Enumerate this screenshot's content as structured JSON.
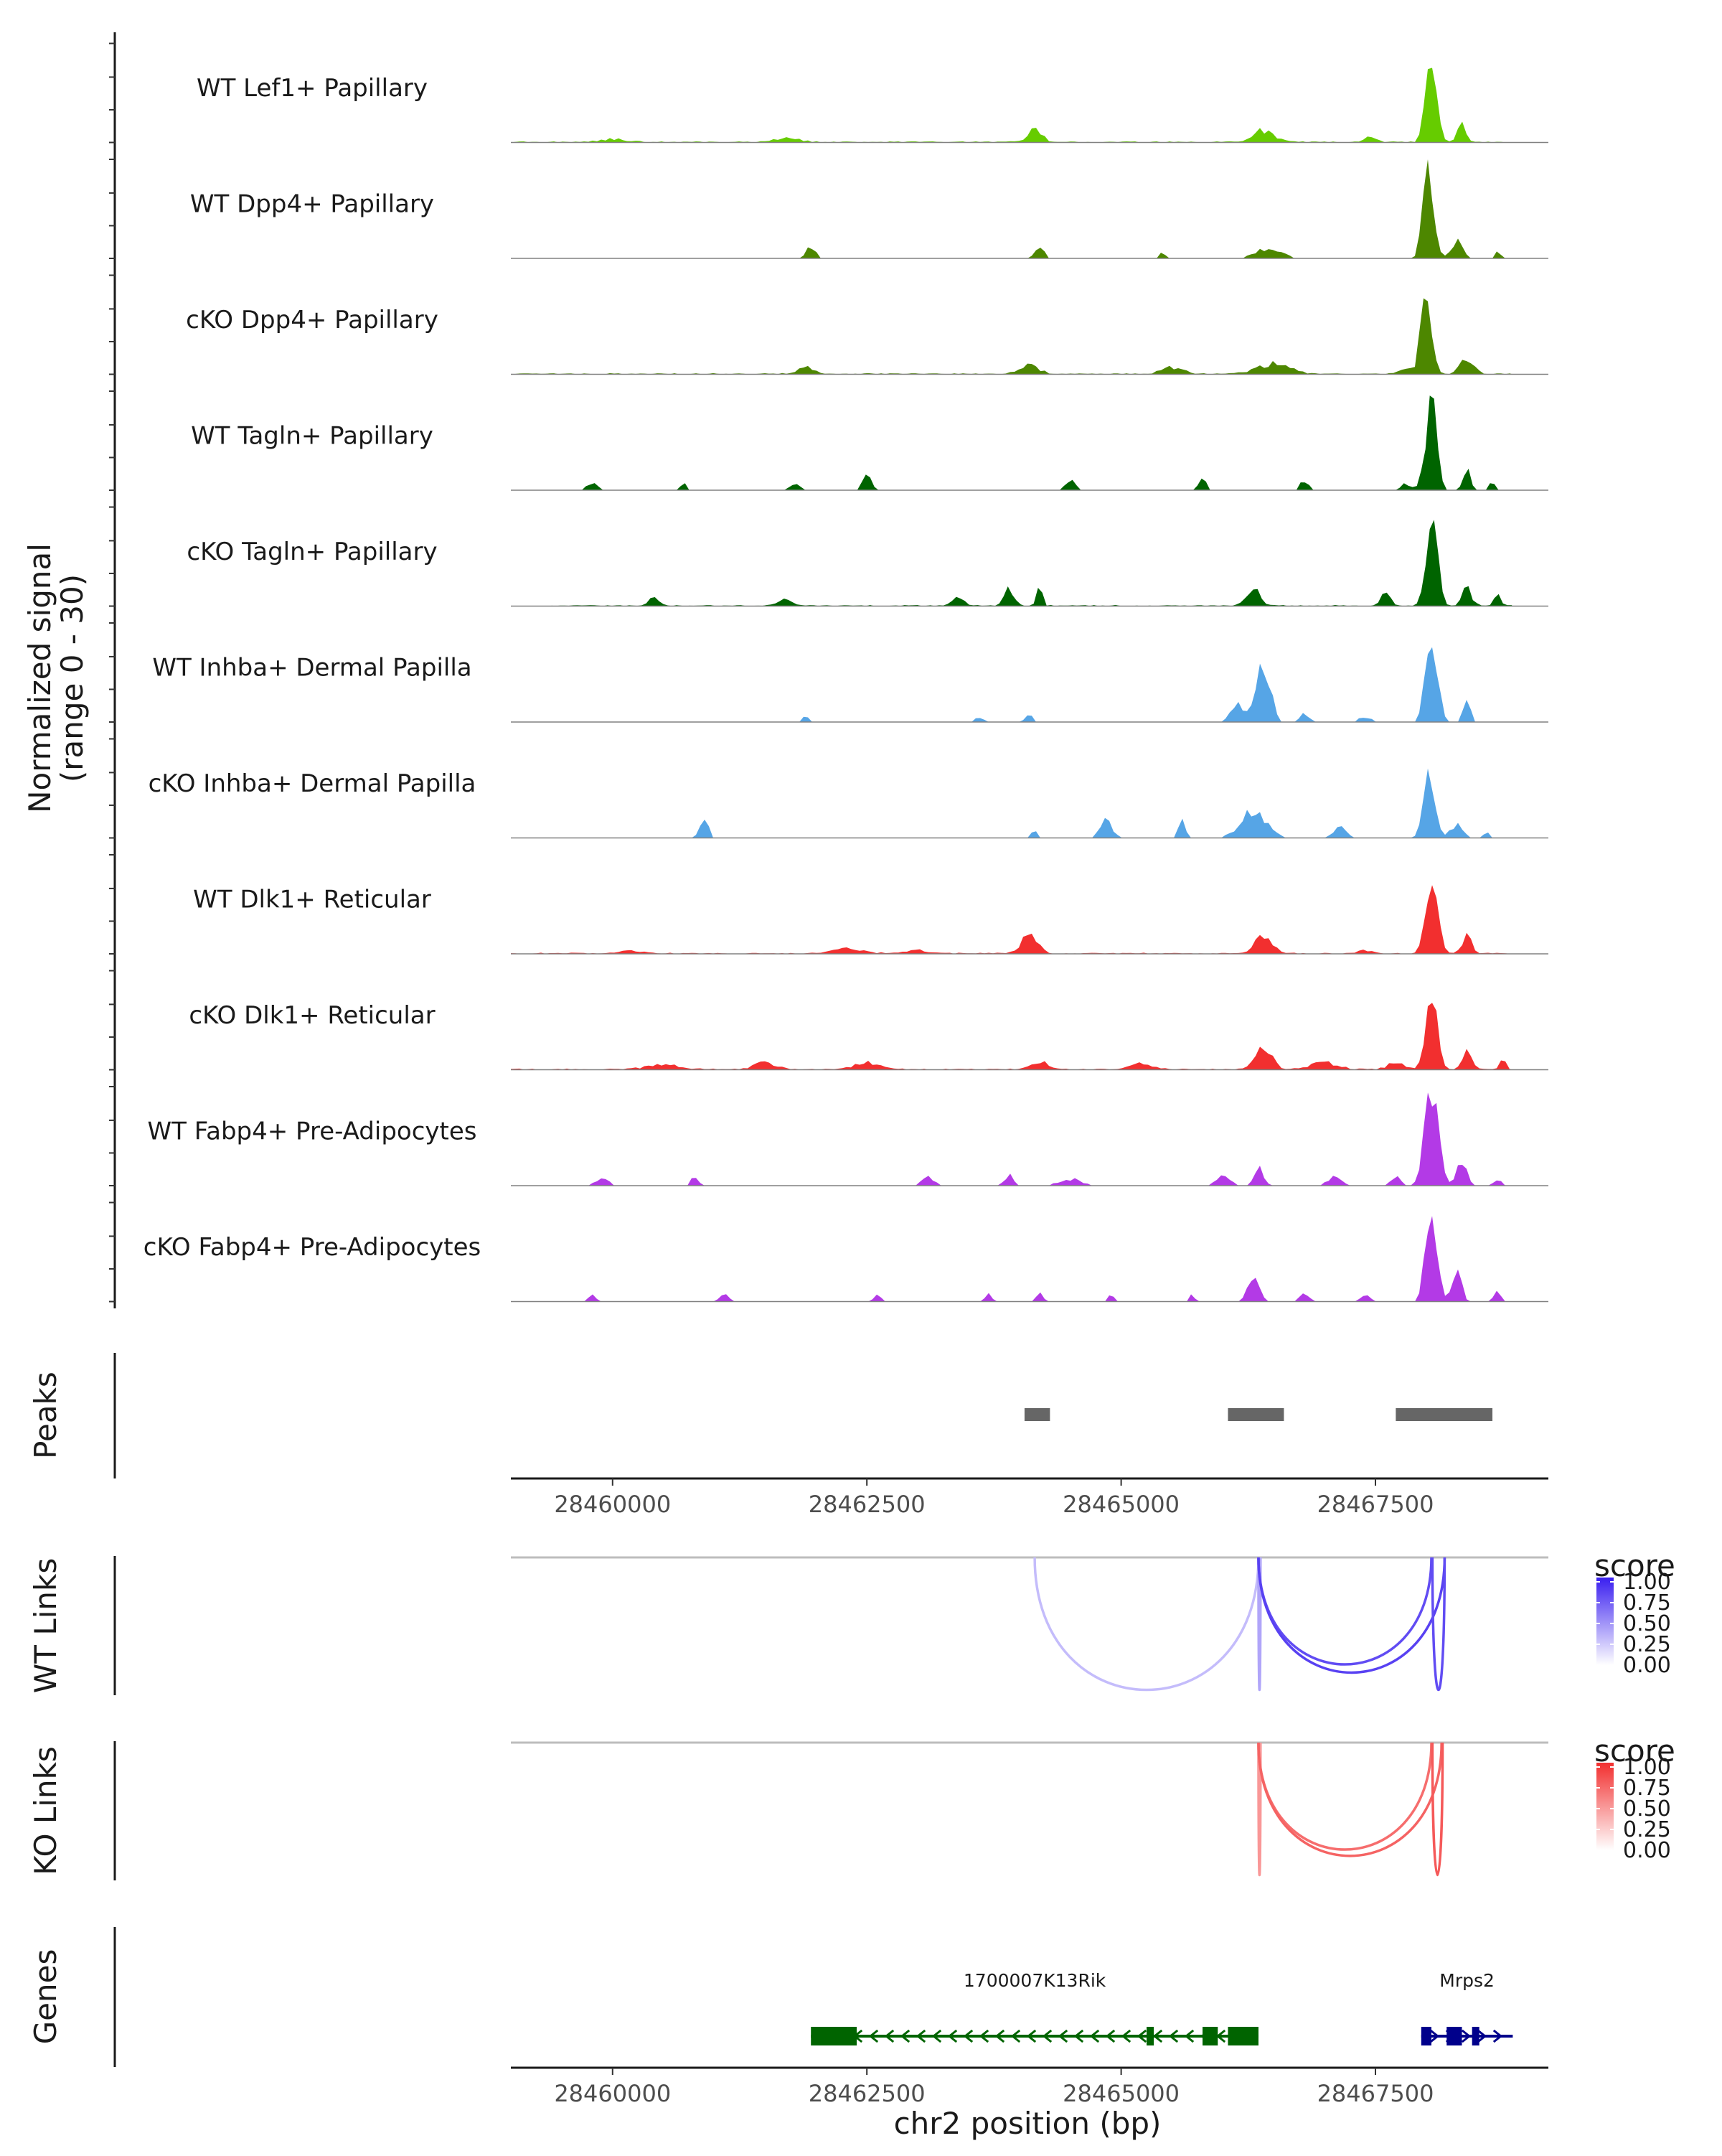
{
  "chart_data": {
    "type": "area",
    "title": "",
    "xlabel": "chr2 position (bp)",
    "ylabel": "Normalized signal",
    "ylabel_range": "(range 0 - 30)",
    "xlim": [
      28459000,
      28469200
    ],
    "ylim": [
      0,
      30
    ],
    "x_ticks": [
      28460000,
      28462500,
      28465000,
      28467500
    ],
    "x_tick_labels": [
      "28460000",
      "28462500",
      "28465000",
      "28467500"
    ],
    "coverage_tracks": [
      {
        "name": "WT Lef1+ Papillary",
        "color": "#66cc00",
        "dense": true,
        "start": 28459000,
        "end": 28468850,
        "peaks": [
          [
            28460000,
            0.8,
            280
          ],
          [
            28461700,
            1.2,
            250
          ],
          [
            28464150,
            3.5,
            140
          ],
          [
            28466400,
            3.5,
            200
          ],
          [
            28467450,
            1.8,
            120
          ],
          [
            28468050,
            30,
            100
          ],
          [
            28468350,
            5,
            80
          ]
        ]
      },
      {
        "name": "WT Dpp4+ Papillary",
        "color": "#4d8700",
        "dense": false,
        "start": 28459000,
        "end": 28468850,
        "peaks": [
          [
            28461950,
            3.5,
            90
          ],
          [
            28464200,
            3.0,
            90
          ],
          [
            28465400,
            2.0,
            60
          ],
          [
            28466450,
            3.0,
            250
          ],
          [
            28468020,
            30,
            100
          ],
          [
            28468300,
            5,
            110
          ],
          [
            28468700,
            2.5,
            60
          ]
        ]
      },
      {
        "name": "cKO Dpp4+ Papillary",
        "color": "#4d8700",
        "dense": true,
        "start": 28459000,
        "end": 28468850,
        "peaks": [
          [
            28461900,
            2.0,
            150
          ],
          [
            28464100,
            2.5,
            180
          ],
          [
            28465500,
            2.0,
            200
          ],
          [
            28466500,
            3.0,
            300
          ],
          [
            28467800,
            2.0,
            100
          ],
          [
            28468000,
            28,
            100
          ],
          [
            28468400,
            5,
            120
          ]
        ]
      },
      {
        "name": "WT Tagln+ Papillary",
        "color": "#006400",
        "dense": false,
        "start": 28459400,
        "end": 28468850,
        "peaks": [
          [
            28459800,
            2.0,
            120
          ],
          [
            28460700,
            2.0,
            60
          ],
          [
            28461800,
            2.0,
            100
          ],
          [
            28462500,
            4.5,
            90
          ],
          [
            28464500,
            3.0,
            100
          ],
          [
            28465800,
            3.5,
            70
          ],
          [
            28466800,
            3.0,
            80
          ],
          [
            28467800,
            2.0,
            90
          ],
          [
            28468050,
            28,
            110
          ],
          [
            28468400,
            7,
            70
          ],
          [
            28468650,
            2.5,
            60
          ]
        ]
      },
      {
        "name": "cKO Tagln+ Papillary",
        "color": "#006400",
        "dense": true,
        "start": 28459400,
        "end": 28468850,
        "peaks": [
          [
            28460400,
            2.0,
            100
          ],
          [
            28461700,
            2.0,
            120
          ],
          [
            28463400,
            2.5,
            100
          ],
          [
            28463900,
            5.0,
            90
          ],
          [
            28464200,
            6.0,
            50
          ],
          [
            28466300,
            6.0,
            120
          ],
          [
            28467600,
            4.0,
            90
          ],
          [
            28468050,
            27,
            110
          ],
          [
            28468400,
            5,
            90
          ],
          [
            28468700,
            3,
            60
          ]
        ]
      },
      {
        "name": "WT Inhba+ Dermal Papilla",
        "color": "#56a5e6",
        "dense": false,
        "start": 28459000,
        "end": 28468850,
        "peaks": [
          [
            28461900,
            1.5,
            80
          ],
          [
            28463600,
            1.5,
            80
          ],
          [
            28464100,
            2.0,
            80
          ],
          [
            28466400,
            18,
            130
          ],
          [
            28466150,
            5,
            150
          ],
          [
            28466800,
            2.5,
            100
          ],
          [
            28467400,
            1.5,
            150
          ],
          [
            28468050,
            28,
            110
          ],
          [
            28468400,
            8,
            70
          ]
        ]
      },
      {
        "name": "cKO Inhba+ Dermal Papilla",
        "color": "#56a5e6",
        "dense": false,
        "start": 28459000,
        "end": 28468850,
        "peaks": [
          [
            28460900,
            6.0,
            80
          ],
          [
            28464150,
            2.5,
            60
          ],
          [
            28464850,
            5.0,
            120
          ],
          [
            28465600,
            5.0,
            70
          ],
          [
            28466300,
            8.0,
            250
          ],
          [
            28467150,
            3.0,
            130
          ],
          [
            28468030,
            20,
            110
          ],
          [
            28468300,
            4,
            120
          ],
          [
            28468600,
            2,
            60
          ]
        ]
      },
      {
        "name": "WT Dlk1+ Reticular",
        "color": "#f22f2f",
        "dense": true,
        "start": 28459000,
        "end": 28468850,
        "peaks": [
          [
            28460200,
            0.8,
            200
          ],
          [
            28462300,
            1.5,
            300
          ],
          [
            28463000,
            1.0,
            200
          ],
          [
            28464100,
            6.0,
            150
          ],
          [
            28466400,
            5.5,
            160
          ],
          [
            28467400,
            1.0,
            120
          ],
          [
            28468050,
            25,
            110
          ],
          [
            28468400,
            5,
            90
          ]
        ]
      },
      {
        "name": "cKO Dlk1+ Reticular",
        "color": "#f22f2f",
        "dense": true,
        "start": 28459000,
        "end": 28468850,
        "peaks": [
          [
            28460500,
            1.5,
            300
          ],
          [
            28461500,
            2.0,
            200
          ],
          [
            28462500,
            2.0,
            250
          ],
          [
            28464200,
            2.5,
            150
          ],
          [
            28465200,
            2.0,
            200
          ],
          [
            28466400,
            7.0,
            150
          ],
          [
            28467000,
            2.0,
            250
          ],
          [
            28467700,
            2.0,
            150
          ],
          [
            28468050,
            24,
            110
          ],
          [
            28468400,
            7,
            80
          ],
          [
            28468750,
            4,
            50
          ]
        ]
      },
      {
        "name": "WT Fabp4+ Pre-Adipocytes",
        "color": "#b33ae6",
        "dense": false,
        "start": 28459000,
        "end": 28468850,
        "peaks": [
          [
            28459900,
            2.0,
            130
          ],
          [
            28460800,
            2.5,
            80
          ],
          [
            28463100,
            2.5,
            120
          ],
          [
            28463900,
            3.0,
            100
          ],
          [
            28464500,
            2.0,
            220
          ],
          [
            28466000,
            3.0,
            140
          ],
          [
            28466350,
            6.0,
            90
          ],
          [
            28467100,
            2.5,
            150
          ],
          [
            28467700,
            2.5,
            100
          ],
          [
            28468050,
            28,
            130
          ],
          [
            28468350,
            8,
            90
          ],
          [
            28468700,
            2.0,
            70
          ]
        ]
      },
      {
        "name": "cKO Fabp4+ Pre-Adipocytes",
        "color": "#b33ae6",
        "dense": false,
        "start": 28459000,
        "end": 28468850,
        "peaks": [
          [
            28459800,
            2.0,
            70
          ],
          [
            28461100,
            2.0,
            100
          ],
          [
            28462600,
            2.5,
            60
          ],
          [
            28463700,
            2.5,
            60
          ],
          [
            28464200,
            2.5,
            60
          ],
          [
            28464900,
            2.0,
            60
          ],
          [
            28465700,
            2.0,
            50
          ],
          [
            28466300,
            7.0,
            120
          ],
          [
            28466800,
            2.5,
            90
          ],
          [
            28467400,
            2.0,
            100
          ],
          [
            28468050,
            30,
            110
          ],
          [
            28468300,
            9,
            90
          ],
          [
            28468700,
            3,
            70
          ]
        ]
      }
    ],
    "peaks_track": {
      "label": "Peaks",
      "color": "#666666",
      "regions": [
        [
          28464050,
          28464300
        ],
        [
          28466050,
          28466600
        ],
        [
          28467700,
          28468650
        ]
      ]
    },
    "link_tracks": [
      {
        "label": "WT Links",
        "legend_title": "score",
        "low_color": "#ffffff",
        "high_color": "#3a1ff0",
        "legend_labels": [
          "1.00",
          "0.75",
          "0.50",
          "0.25",
          "0.00"
        ],
        "links": [
          {
            "start": 28464150,
            "end": 28466350,
            "score": 0.3
          },
          {
            "start": 28466350,
            "end": 28466370,
            "score": 0.4
          },
          {
            "start": 28466350,
            "end": 28468050,
            "score": 0.8
          },
          {
            "start": 28466350,
            "end": 28468180,
            "score": 0.85
          },
          {
            "start": 28468060,
            "end": 28468180,
            "score": 0.8
          }
        ]
      },
      {
        "label": "KO Links",
        "legend_title": "score",
        "low_color": "#ffffff",
        "high_color": "#f22f2f",
        "legend_labels": [
          "1.00",
          "0.75",
          "0.50",
          "0.25",
          "0.00"
        ],
        "links": [
          {
            "start": 28466350,
            "end": 28466370,
            "score": 0.5
          },
          {
            "start": 28466350,
            "end": 28468050,
            "score": 0.7
          },
          {
            "start": 28466350,
            "end": 28468150,
            "score": 0.75
          },
          {
            "start": 28468060,
            "end": 28468160,
            "score": 0.8
          }
        ]
      }
    ],
    "genes_track": {
      "label": "Genes",
      "genes": [
        {
          "name": "1700007K13Rik",
          "start": 28461950,
          "end": 28466350,
          "strand": "-",
          "color": "#006400",
          "exons": [
            [
              28461950,
              28462400
            ],
            [
              28465250,
              28465320
            ],
            [
              28465800,
              28465950
            ],
            [
              28466050,
              28466350
            ]
          ]
        },
        {
          "name": "Mrps2",
          "start": 28467950,
          "end": 28468850,
          "strand": "+",
          "color": "#00008b",
          "exons": [
            [
              28467950,
              28468050
            ],
            [
              28468200,
              28468350
            ],
            [
              28468450,
              28468520
            ]
          ]
        }
      ]
    }
  }
}
